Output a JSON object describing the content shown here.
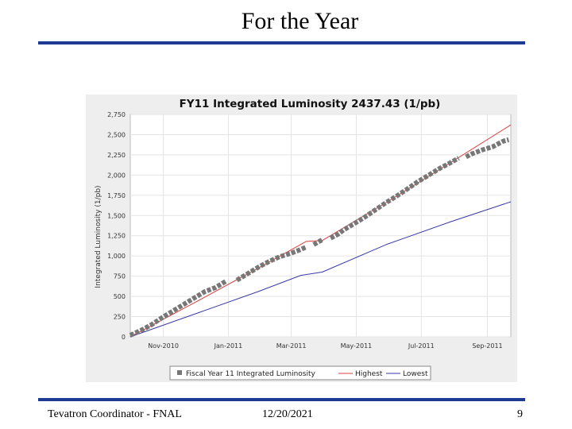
{
  "slide": {
    "title": "For the Year",
    "footer_left": "Tevatron Coordinator - FNAL",
    "footer_center": "12/20/2021",
    "page_number": "9"
  },
  "colors": {
    "rule": "#1f3a93",
    "plot_bg": "#ffffff",
    "panel_bg": "#eeeeee",
    "actual": "#777777",
    "highest": "#d94040",
    "lowest": "#3a3aaa"
  },
  "chart_data": {
    "type": "line",
    "title": "FY11 Integrated Luminosity 2437.43 (1/pb)",
    "xlabel": "",
    "ylabel": "Integrated Luminosity (1/pb)",
    "xlim": [
      0,
      357
    ],
    "ylim": [
      0,
      2750
    ],
    "y_ticks": [
      0,
      250,
      500,
      750,
      1000,
      1250,
      1500,
      1750,
      2000,
      2250,
      2500,
      2750
    ],
    "y_tick_labels": [
      "0",
      "250",
      "500",
      "750",
      "1,000",
      "1,250",
      "1,500",
      "1,750",
      "2,000",
      "2,250",
      "2,500",
      "2,750"
    ],
    "x_ticks": [
      {
        "day": 31,
        "label": "Nov-2010"
      },
      {
        "day": 92,
        "label": "Jan-2011"
      },
      {
        "day": 151,
        "label": "Mar-2011"
      },
      {
        "day": 212,
        "label": "May-2011"
      },
      {
        "day": 273,
        "label": "Jul-2011"
      },
      {
        "day": 335,
        "label": "Sep-2011"
      }
    ],
    "legend": [
      "Fiscal Year 11 Integrated Luminosity",
      "Highest",
      "Lowest"
    ],
    "legend_position": "bottom",
    "series": [
      {
        "name": "Fiscal Year 11 Integrated Luminosity",
        "style": "thick",
        "segments": [
          {
            "x": [
              0,
              10,
              20,
              30,
              40,
              50,
              60,
              70,
              80,
              90
            ],
            "y": [
              20,
              80,
              150,
              240,
              320,
              400,
              480,
              560,
              610,
              690
            ]
          },
          {
            "x": [
              100,
              110,
              120,
              130,
              140,
              150,
              158,
              165
            ],
            "y": [
              700,
              780,
              860,
              930,
              990,
              1030,
              1070,
              1110
            ]
          },
          {
            "x": [
              172,
              180
            ],
            "y": [
              1140,
              1200
            ]
          },
          {
            "x": [
              188,
              195,
              200,
              210,
              220,
              230,
              240,
              250,
              260,
              270,
              280,
              290,
              300,
              308
            ],
            "y": [
              1220,
              1270,
              1320,
              1400,
              1480,
              1570,
              1660,
              1740,
              1830,
              1920,
              2000,
              2080,
              2150,
              2210
            ]
          },
          {
            "x": [
              315,
              320,
              330,
              340,
              350,
              355
            ],
            "y": [
              2225,
              2260,
              2310,
              2350,
              2420,
              2437
            ]
          }
        ]
      },
      {
        "name": "Highest",
        "style": "thin",
        "segments": [
          {
            "x": [
              0,
              60,
              120,
              165,
              180,
              240,
              300,
              357
            ],
            "y": [
              0,
              420,
              850,
              1180,
              1190,
              1660,
              2150,
              2620
            ]
          }
        ]
      },
      {
        "name": "Lowest",
        "style": "thin",
        "segments": [
          {
            "x": [
              0,
              60,
              120,
              160,
              180,
              240,
              300,
              357
            ],
            "y": [
              0,
              280,
              560,
              760,
              800,
              1140,
              1420,
              1670
            ]
          }
        ]
      }
    ]
  }
}
